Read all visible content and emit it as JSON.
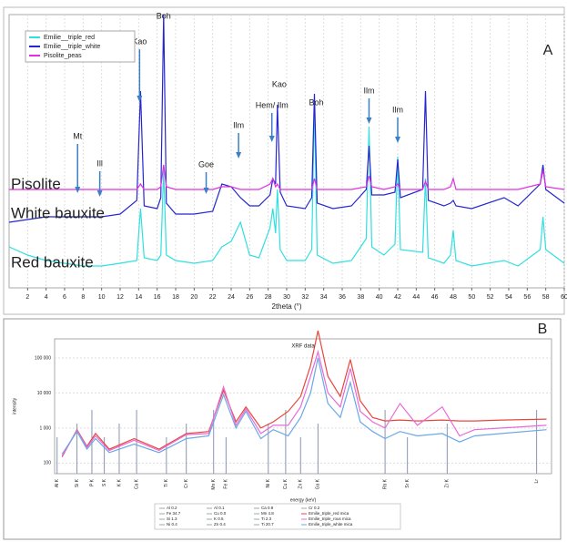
{
  "chart_data": [
    {
      "type": "line",
      "panel_label": "A",
      "x_label": "2theta (°)",
      "xlim": [
        0,
        60
      ],
      "ylim": [
        0,
        100
      ],
      "xticks": [
        2,
        4,
        6,
        8,
        10,
        12,
        14,
        16,
        18,
        20,
        22,
        24,
        26,
        28,
        30,
        32,
        34,
        36,
        38,
        40,
        42,
        44,
        46,
        48,
        50,
        52,
        54,
        56,
        58,
        60
      ],
      "grid": true,
      "legend": "upper left",
      "x": [
        0,
        2,
        4,
        6,
        8,
        10,
        12,
        13.8,
        14.2,
        14.6,
        16,
        16.4,
        16.7,
        17,
        18,
        20,
        22,
        23,
        24,
        25,
        26,
        27,
        28.2,
        28.5,
        28.8,
        29,
        29.3,
        30,
        32,
        32.7,
        33,
        33.3,
        35,
        37,
        38.6,
        38.9,
        39.2,
        40.5,
        41.7,
        42,
        42.3,
        44.7,
        45,
        45.3,
        47,
        47.7,
        48,
        48.3,
        50,
        53.5,
        55,
        57.4,
        57.7,
        58,
        60
      ],
      "series": [
        {
          "name": "Emilie__triple_red",
          "color": "#30e0e0",
          "values": [
            15,
            12,
            10,
            9,
            8,
            8,
            9,
            10,
            29,
            11,
            10,
            12,
            43,
            12,
            10,
            9,
            10,
            15,
            17,
            24,
            12,
            11,
            22,
            29,
            20,
            36,
            14,
            10,
            10,
            14,
            67,
            12,
            9,
            10,
            18,
            59,
            15,
            12,
            16,
            48,
            14,
            13,
            40,
            11,
            9,
            12,
            21,
            10,
            8,
            10,
            8,
            14,
            26,
            14,
            9
          ]
        },
        {
          "name": "Emilie__triple_white",
          "color": "#2626d0",
          "values": [
            24,
            25,
            26,
            26,
            26,
            26,
            27,
            32,
            72,
            30,
            29,
            33,
            100,
            31,
            27,
            27,
            28,
            38,
            37,
            33,
            30,
            30,
            34,
            40,
            38,
            67,
            35,
            30,
            29,
            33,
            71,
            31,
            29,
            30,
            36,
            52,
            34,
            34,
            35,
            47,
            33,
            36,
            72,
            32,
            30,
            31,
            32,
            30,
            29,
            33,
            30,
            38,
            45,
            36,
            31
          ]
        },
        {
          "name": "Pisolite_peas",
          "color": "#e030e0",
          "values": [
            36,
            36,
            36,
            36,
            36,
            36,
            36,
            36,
            38,
            36,
            36,
            37,
            45,
            37,
            36,
            36,
            36,
            37,
            37,
            36,
            36,
            36,
            38,
            40,
            37,
            38,
            36,
            36,
            36,
            36,
            40,
            36,
            36,
            36,
            37,
            41,
            37,
            36,
            37,
            38,
            36,
            36,
            39,
            36,
            36,
            37,
            40,
            36,
            36,
            36,
            36,
            38,
            43,
            37,
            36
          ]
        }
      ],
      "annotations": [
        {
          "text": "Mt",
          "x": 7.4
        },
        {
          "text": "Ill",
          "x": 9.8
        },
        {
          "text": "Kao",
          "x": 14.1
        },
        {
          "text": "Boh",
          "x": 16.7
        },
        {
          "text": "Goe",
          "x": 21.3
        },
        {
          "text": "Ilm",
          "x": 24.8
        },
        {
          "text": "Hem/ Ilm",
          "x": 28.4
        },
        {
          "text": "Kao",
          "x": 29.2
        },
        {
          "text": "Boh",
          "x": 33.2
        },
        {
          "text": "Ilm",
          "x": 38.9
        },
        {
          "text": "Ilm",
          "x": 42.0
        }
      ],
      "sample_labels": [
        "Pisolite",
        "White bauxite",
        "Red bauxite"
      ]
    },
    {
      "type": "line",
      "title": "XRF data",
      "panel_label": "B",
      "x_label": "energy (keV)",
      "y_label": "intensity",
      "log_y": true,
      "xlim": [
        0,
        20
      ],
      "ylim": [
        50,
        350000
      ],
      "yticks": [
        100,
        {
          "value": 1000,
          "label": "1 000"
        },
        {
          "value": 10000,
          "label": "10 000"
        },
        {
          "value": 100000,
          "label": "100 000"
        }
      ],
      "grid": true,
      "x": [
        0.3,
        0.9,
        1.3,
        1.65,
        2.2,
        3.2,
        4.2,
        5.3,
        6.2,
        6.8,
        7.3,
        7.7,
        8.3,
        8.8,
        9.4,
        9.9,
        10.3,
        10.6,
        11,
        11.5,
        11.9,
        12.3,
        12.8,
        13.3,
        13.9,
        14.6,
        15.6,
        16.3,
        16.9,
        18,
        19.8
      ],
      "series": [
        {
          "name": "Emilie_triple_red mica",
          "color": "#e8463c",
          "values": [
            150,
            900,
            300,
            700,
            250,
            500,
            250,
            700,
            800,
            12000,
            1500,
            4000,
            1000,
            1500,
            3000,
            8000,
            60000,
            600000,
            30000,
            8000,
            90000,
            6000,
            2000,
            1600,
            1700,
            1600,
            1700,
            1600,
            1600,
            1700,
            1800
          ]
        },
        {
          "name": "Emilie_triple_rous mica",
          "color": "#e86ad8",
          "values": [
            160,
            850,
            280,
            600,
            230,
            450,
            230,
            650,
            700,
            15000,
            1200,
            3500,
            700,
            1200,
            1200,
            4000,
            30000,
            150000,
            10000,
            4000,
            50000,
            3000,
            1500,
            1000,
            5000,
            1200,
            4000,
            600,
            900,
            1000,
            1200
          ]
        },
        {
          "name": "Emilie_triple_white mica",
          "color": "#6aa8e8",
          "values": [
            180,
            800,
            250,
            500,
            200,
            350,
            200,
            500,
            600,
            9000,
            1000,
            3000,
            500,
            900,
            600,
            2000,
            10000,
            100000,
            5000,
            2000,
            20000,
            1500,
            800,
            500,
            800,
            600,
            700,
            400,
            600,
            700,
            900
          ]
        }
      ],
      "element_lines": [
        {
          "label": "Al K",
          "x": 0.1
        },
        {
          "label": "Si K",
          "x": 0.9
        },
        {
          "label": "P K",
          "x": 1.5
        },
        {
          "label": "S K",
          "x": 2.0
        },
        {
          "label": "K K",
          "x": 2.6
        },
        {
          "label": "Ca K",
          "x": 3.3
        },
        {
          "label": "Ti K",
          "x": 4.5
        },
        {
          "label": "Cr K",
          "x": 5.3
        },
        {
          "label": "Mn K",
          "x": 6.4
        },
        {
          "label": "Fe K",
          "x": 6.9
        },
        {
          "label": "Ni K",
          "x": 8.6
        },
        {
          "label": "Cu K",
          "x": 9.3
        },
        {
          "label": "Zn K",
          "x": 9.9
        },
        {
          "label": "Ga K",
          "x": 10.6
        },
        {
          "label": "Rb K",
          "x": 13.3
        },
        {
          "label": "Sr K",
          "x": 14.2
        },
        {
          "label": "Zr K",
          "x": 15.8
        },
        {
          "label": "Lr",
          "x": 19.4
        }
      ],
      "legend_items": [
        "Al 0.2",
        "Fe 34.7",
        "Si 1.3",
        "Ni 0.4",
        "Al 0.1",
        "Cu 0.0",
        "K 0.5",
        "Zn 0.4",
        "Ca 0.9",
        "Mn 4.8",
        "Ti 2.3",
        "Ti 20.7",
        "Cr 0.2"
      ]
    }
  ]
}
